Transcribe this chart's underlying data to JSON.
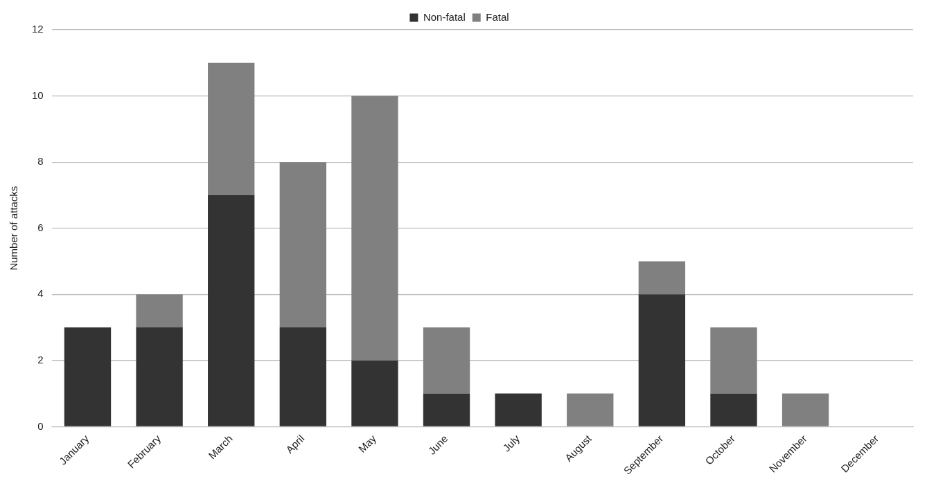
{
  "chart_data": {
    "type": "bar",
    "stacked": true,
    "ylabel": "Number of attacks",
    "categories": [
      "January",
      "February",
      "March",
      "April",
      "May",
      "June",
      "July",
      "August",
      "September",
      "October",
      "November",
      "December"
    ],
    "series": [
      {
        "name": "Non-fatal",
        "color": "#333333",
        "values": [
          3,
          3,
          7,
          3,
          2,
          1,
          1,
          0,
          4,
          1,
          0,
          0
        ]
      },
      {
        "name": "Fatal",
        "color": "#808080",
        "values": [
          0,
          1,
          4,
          5,
          8,
          2,
          0,
          1,
          1,
          2,
          1,
          0
        ]
      }
    ],
    "ylim": [
      0,
      12
    ],
    "yticks": [
      0,
      2,
      4,
      6,
      8,
      10,
      12
    ],
    "grid": "y",
    "legend": "top"
  }
}
